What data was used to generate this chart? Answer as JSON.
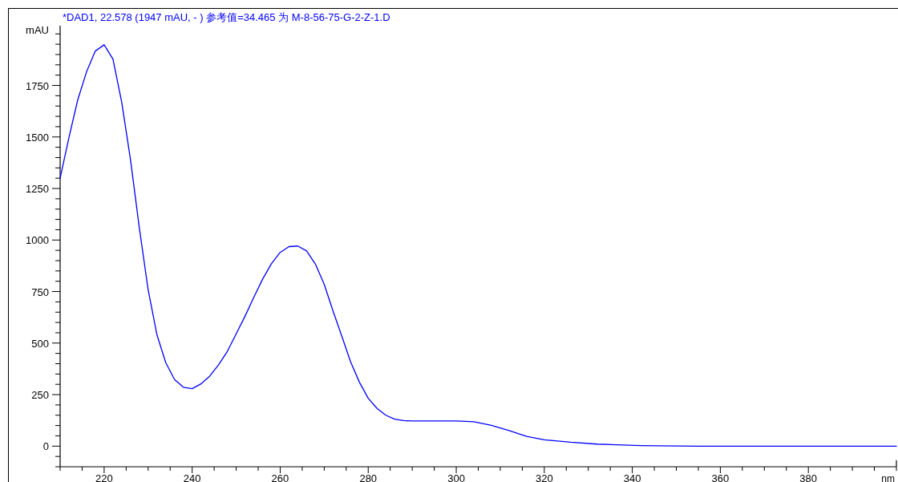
{
  "chart_data": {
    "type": "line",
    "title": "*DAD1, 22.578 (1947 mAU, - ) 参考值=34.465 为 M-8-56-75-G-2-Z-1.D",
    "xlabel": "nm",
    "ylabel": "mAU",
    "x": [
      210,
      212,
      214,
      216,
      218,
      220,
      222,
      224,
      226,
      228,
      230,
      232,
      234,
      236,
      238,
      240,
      242,
      244,
      246,
      248,
      250,
      252,
      254,
      256,
      258,
      260,
      262,
      264,
      266,
      268,
      270,
      272,
      274,
      276,
      278,
      280,
      282,
      284,
      286,
      288,
      290,
      295,
      300,
      304,
      308,
      312,
      316,
      320,
      326,
      332,
      342,
      355,
      370,
      400
    ],
    "series": [
      {
        "color": "#0000ff",
        "values": [
          1300,
          1497,
          1680,
          1816,
          1917,
          1947,
          1878,
          1668,
          1388,
          1058,
          758,
          540,
          405,
          323,
          286,
          279,
          302,
          340,
          395,
          460,
          545,
          630,
          722,
          810,
          885,
          940,
          968,
          971,
          947,
          883,
          785,
          656,
          533,
          409,
          310,
          232,
          183,
          150,
          131,
          124,
          122,
          122,
          122,
          118,
          101,
          76,
          47,
          31,
          19,
          10,
          3,
          0,
          0,
          0
        ]
      }
    ],
    "xlim": [
      210,
      400
    ],
    "ylim": [
      -100,
      2040
    ],
    "xticks": [
      {
        "value": 210,
        "label": null
      },
      {
        "value": 215,
        "label": null
      },
      220,
      {
        "value": 225,
        "label": null
      },
      {
        "value": 230,
        "label": null
      },
      {
        "value": 235,
        "label": null
      },
      240,
      {
        "value": 245,
        "label": null
      },
      {
        "value": 250,
        "label": null
      },
      {
        "value": 255,
        "label": null
      },
      260,
      {
        "value": 265,
        "label": null
      },
      {
        "value": 270,
        "label": null
      },
      {
        "value": 275,
        "label": null
      },
      280,
      {
        "value": 285,
        "label": null
      },
      {
        "value": 290,
        "label": null
      },
      {
        "value": 295,
        "label": null
      },
      300,
      {
        "value": 305,
        "label": null
      },
      {
        "value": 310,
        "label": null
      },
      {
        "value": 315,
        "label": null
      },
      320,
      {
        "value": 325,
        "label": null
      },
      {
        "value": 330,
        "label": null
      },
      {
        "value": 335,
        "label": null
      },
      340,
      {
        "value": 345,
        "label": null
      },
      {
        "value": 350,
        "label": null
      },
      {
        "value": 355,
        "label": null
      },
      360,
      {
        "value": 365,
        "label": null
      },
      {
        "value": 370,
        "label": null
      },
      {
        "value": 375,
        "label": null
      },
      380,
      {
        "value": 385,
        "label": null
      },
      {
        "value": 390,
        "label": null
      },
      {
        "value": 395,
        "label": null
      },
      {
        "value": 400,
        "label": null
      }
    ],
    "yticks": [
      {
        "value": -100,
        "label": null
      },
      {
        "value": -50,
        "label": null
      },
      0,
      {
        "value": 50,
        "label": null
      },
      {
        "value": 100,
        "label": null
      },
      {
        "value": 150,
        "label": null
      },
      {
        "value": 200,
        "label": null
      },
      250,
      {
        "value": 300,
        "label": null
      },
      {
        "value": 350,
        "label": null
      },
      {
        "value": 400,
        "label": null
      },
      {
        "value": 450,
        "label": null
      },
      500,
      {
        "value": 550,
        "label": null
      },
      {
        "value": 600,
        "label": null
      },
      {
        "value": 650,
        "label": null
      },
      {
        "value": 700,
        "label": null
      },
      750,
      {
        "value": 800,
        "label": null
      },
      {
        "value": 850,
        "label": null
      },
      {
        "value": 900,
        "label": null
      },
      {
        "value": 950,
        "label": null
      },
      1000,
      {
        "value": 1050,
        "label": null
      },
      {
        "value": 1100,
        "label": null
      },
      {
        "value": 1150,
        "label": null
      },
      {
        "value": 1200,
        "label": null
      },
      1250,
      {
        "value": 1300,
        "label": null
      },
      {
        "value": 1350,
        "label": null
      },
      {
        "value": 1400,
        "label": null
      },
      {
        "value": 1450,
        "label": null
      },
      1500,
      {
        "value": 1550,
        "label": null
      },
      {
        "value": 1600,
        "label": null
      },
      {
        "value": 1650,
        "label": null
      },
      {
        "value": 1700,
        "label": null
      },
      1750,
      {
        "value": 1800,
        "label": null
      },
      {
        "value": 1850,
        "label": null
      },
      {
        "value": 1900,
        "label": null
      },
      {
        "value": 1950,
        "label": null
      },
      {
        "value": 2000,
        "label": null
      }
    ],
    "grid": false,
    "marker": "none",
    "line_style": "solid"
  }
}
